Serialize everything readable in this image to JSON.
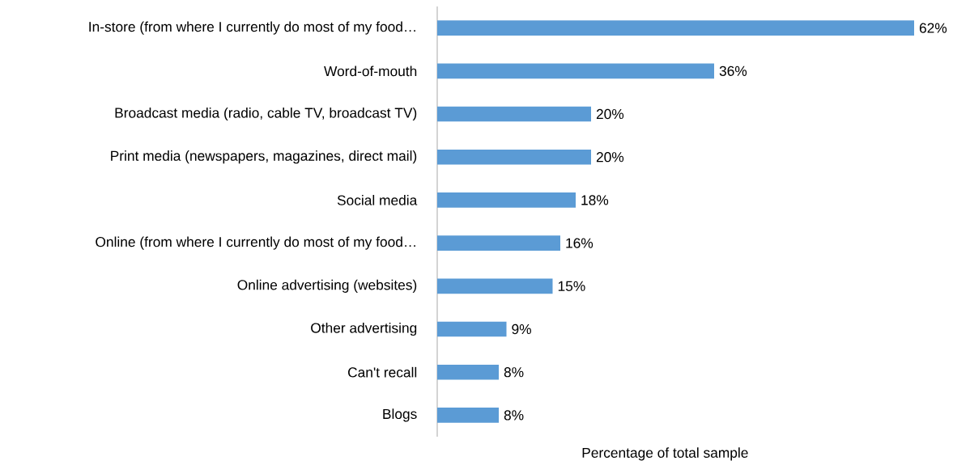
{
  "chart_data": {
    "type": "bar",
    "orientation": "horizontal",
    "xlabel": "Percentage of total sample",
    "categories": [
      "In-store (from where I currently do most of my food…",
      "Word-of-mouth",
      "Broadcast media (radio, cable TV, broadcast TV)",
      "Print media (newspapers, magazines, direct mail)",
      "Social media",
      "Online (from where I currently do most of my food…",
      "Online advertising (websites)",
      "Other advertising",
      "Can't recall",
      "Blogs"
    ],
    "values": [
      62,
      36,
      20,
      20,
      18,
      16,
      15,
      9,
      8,
      8
    ],
    "value_labels": [
      "62%",
      "36%",
      "20%",
      "20%",
      "18%",
      "16%",
      "15%",
      "9%",
      "8%",
      "8%"
    ],
    "color": "#5b9bd5"
  }
}
